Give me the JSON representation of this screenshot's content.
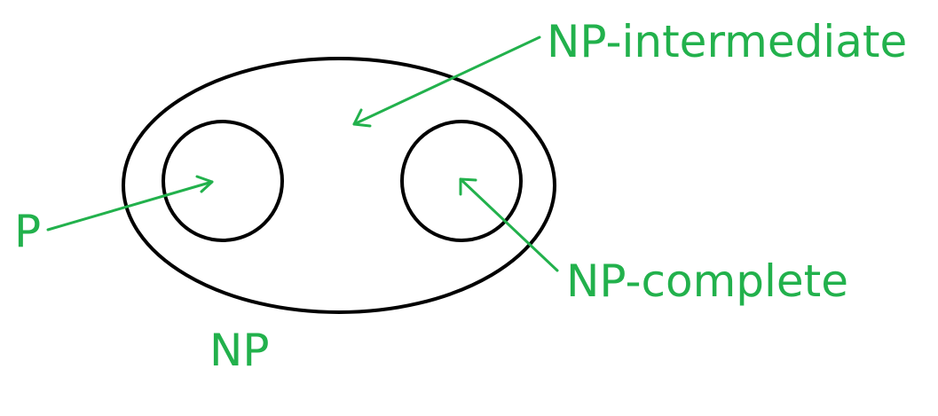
{
  "colors": {
    "outline": "#000000",
    "annotation": "#22b14c",
    "background": "#ffffff"
  },
  "labels": {
    "np_intermediate": "NP-intermediate",
    "np_complete": "NP-complete",
    "p": "P",
    "np": "NP"
  }
}
